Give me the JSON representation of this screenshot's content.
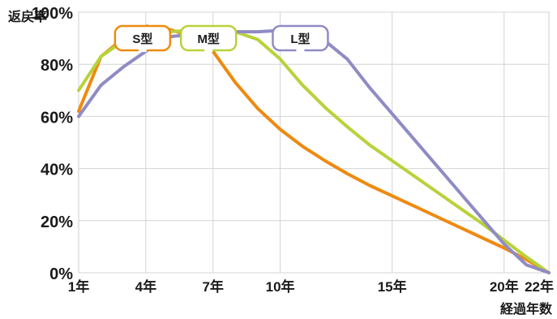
{
  "chart_data": {
    "type": "line",
    "ylabel": "返戻率",
    "xlabel": "経過年数",
    "x": [
      1,
      2,
      3,
      4,
      5,
      6,
      7,
      8,
      9,
      10,
      11,
      12,
      13,
      14,
      15,
      16,
      17,
      18,
      19,
      20,
      21,
      22
    ],
    "xlim": [
      1,
      22
    ],
    "ylim": [
      0,
      100
    ],
    "y_ticks": [
      {
        "value": 0,
        "label": "0%"
      },
      {
        "value": 20,
        "label": "20%"
      },
      {
        "value": 40,
        "label": "40%"
      },
      {
        "value": 60,
        "label": "60%"
      },
      {
        "value": 80,
        "label": "80%"
      },
      {
        "value": 100,
        "label": "100%"
      }
    ],
    "x_ticks": [
      {
        "value": 1,
        "label": "1年"
      },
      {
        "value": 4,
        "label": "4年"
      },
      {
        "value": 7,
        "label": "7年"
      },
      {
        "value": 10,
        "label": "10年"
      },
      {
        "value": 15,
        "label": "15年"
      },
      {
        "value": 20,
        "label": "20年"
      },
      {
        "value": 22,
        "label": "22年"
      }
    ],
    "grid": true,
    "series": [
      {
        "name": "S型",
        "color": "#ee8a10",
        "callout_x": 4,
        "x": [
          1,
          2,
          3,
          4,
          5,
          6,
          7,
          8,
          9,
          10,
          11,
          12,
          13,
          14,
          15,
          16,
          17,
          18,
          19,
          20,
          21,
          22
        ],
        "values": [
          62,
          83,
          90,
          94,
          93.5,
          91,
          85,
          73,
          63,
          55,
          48.5,
          43,
          38,
          33.5,
          29.5,
          25.5,
          21.5,
          17.5,
          13.5,
          9.5,
          5,
          0
        ]
      },
      {
        "name": "M型",
        "color": "#b8d23a",
        "callout_x": 6.8,
        "x": [
          1,
          2,
          3,
          4,
          5,
          6,
          7,
          8,
          9,
          10,
          11,
          12,
          13,
          14,
          15,
          16,
          17,
          18,
          19,
          20,
          21,
          22
        ],
        "values": [
          70,
          83,
          89,
          92,
          92.5,
          93,
          93.5,
          92.5,
          89.5,
          82,
          72,
          63.5,
          56,
          49,
          43,
          37,
          31,
          25,
          19,
          12.5,
          6,
          0
        ]
      },
      {
        "name": "L型",
        "color": "#8f8bc4",
        "callout_x": 10.9,
        "x": [
          1,
          2,
          3,
          4,
          5,
          6,
          7,
          8,
          9,
          10,
          11,
          12,
          13,
          14,
          15,
          16,
          17,
          18,
          19,
          20,
          21,
          22
        ],
        "values": [
          60,
          72,
          79,
          85,
          90.5,
          91.5,
          92,
          92.5,
          92.5,
          93,
          92,
          89,
          82,
          71,
          61,
          51,
          41,
          31,
          21,
          11,
          3,
          0
        ]
      }
    ]
  }
}
